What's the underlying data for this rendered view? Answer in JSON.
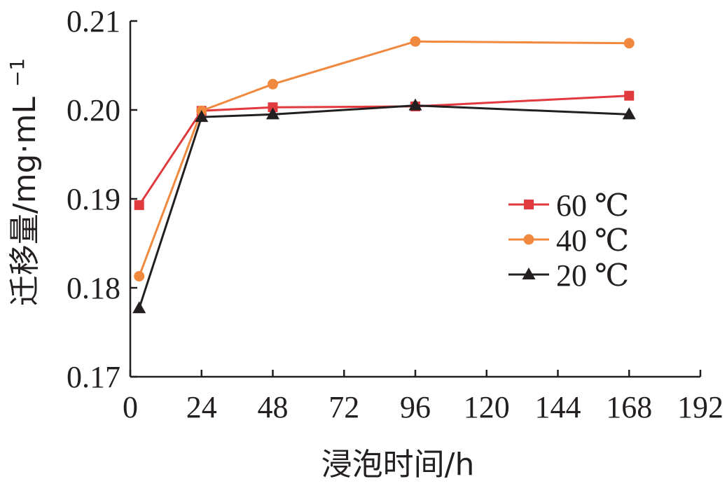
{
  "chart_data": {
    "type": "line",
    "xlabel": "浸泡时间/h",
    "ylabel": "迁移量/mg·mL",
    "ylabel_sup": "−1",
    "xlim": [
      0,
      192
    ],
    "ylim": [
      0.17,
      0.21
    ],
    "xticks": [
      0,
      24,
      48,
      72,
      96,
      120,
      144,
      168,
      192
    ],
    "xtick_labels": [
      "0",
      "24",
      "48",
      "72",
      "96",
      "120",
      "144",
      "168",
      "192"
    ],
    "yticks": [
      0.17,
      0.18,
      0.19,
      0.2,
      0.21
    ],
    "ytick_labels": [
      "0.17",
      "0.18",
      "0.19",
      "0.20",
      "0.21"
    ],
    "grid": false,
    "legend_position": "right",
    "series": [
      {
        "name": "60 ℃",
        "color": "#e03a3e",
        "marker": "square",
        "x": [
          3,
          24,
          48,
          96,
          168
        ],
        "y": [
          0.1893,
          0.1999,
          0.2003,
          0.2004,
          0.2016
        ]
      },
      {
        "name": "40 ℃",
        "color": "#f0883e",
        "marker": "circle",
        "x": [
          3,
          24,
          48,
          96,
          168
        ],
        "y": [
          0.1813,
          0.1999,
          0.2029,
          0.2077,
          0.2075
        ]
      },
      {
        "name": "20 ℃",
        "color": "#231f20",
        "marker": "triangle",
        "x": [
          3,
          24,
          48,
          96,
          168
        ],
        "y": [
          0.1777,
          0.1992,
          0.1995,
          0.2005,
          0.1995
        ]
      }
    ]
  }
}
